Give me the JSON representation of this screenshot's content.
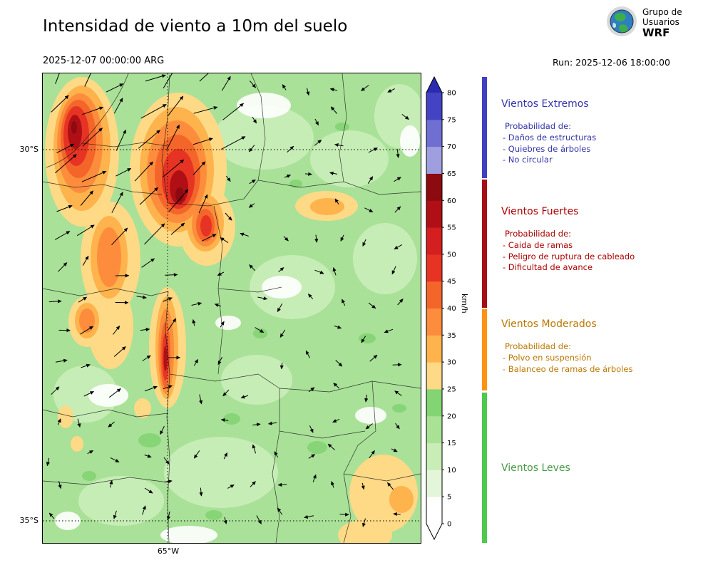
{
  "header": {
    "title": "Intensidad de viento a 10m del suelo",
    "datetime": "2025-12-07 00:00:00 ARG",
    "run_label": "Run: 2025-12-06 18:00:00",
    "logo": {
      "line1": "Grupo de",
      "line2": "Usuarios",
      "line3": "WRF"
    }
  },
  "map": {
    "lat_ticks": [
      "30°S",
      "35°S"
    ],
    "lon_ticks": [
      "65°W"
    ]
  },
  "colorbar": {
    "unit": "km/h",
    "ticks": [
      0,
      5,
      10,
      15,
      20,
      25,
      30,
      35,
      40,
      45,
      50,
      55,
      60,
      65,
      70,
      75,
      80
    ],
    "segments": [
      {
        "from": 0,
        "to": 5,
        "color": "#ffffff"
      },
      {
        "from": 5,
        "to": 10,
        "color": "#e4f6da"
      },
      {
        "from": 10,
        "to": 15,
        "color": "#c9edb6"
      },
      {
        "from": 15,
        "to": 20,
        "color": "#a9e295"
      },
      {
        "from": 20,
        "to": 25,
        "color": "#83d573"
      },
      {
        "from": 25,
        "to": 30,
        "color": "#fed986"
      },
      {
        "from": 30,
        "to": 35,
        "color": "#feb34c"
      },
      {
        "from": 35,
        "to": 40,
        "color": "#fd8d3c"
      },
      {
        "from": 40,
        "to": 45,
        "color": "#f4652a"
      },
      {
        "from": 45,
        "to": 50,
        "color": "#e63323"
      },
      {
        "from": 50,
        "to": 55,
        "color": "#d41e1f"
      },
      {
        "from": 55,
        "to": 60,
        "color": "#b01015"
      },
      {
        "from": 60,
        "to": 65,
        "color": "#8c0a10"
      },
      {
        "from": 65,
        "to": 70,
        "color": "#9f9fe0"
      },
      {
        "from": 70,
        "to": 75,
        "color": "#6f6fd2"
      },
      {
        "from": 75,
        "to": 80,
        "color": "#4343c3"
      }
    ],
    "over_color": "#2a2ab2",
    "under_color": "#ffffff"
  },
  "legend": {
    "sections": [
      {
        "title": "Vientos Extremos",
        "color": "#3333aa",
        "bar_color": "#4040c0",
        "items_header": "Probabilidad de:",
        "items": [
          "- Daños de estructuras",
          "- Quiebres de árboles",
          "- No circular"
        ]
      },
      {
        "title": "Vientos Fuertes",
        "color": "#aa0000",
        "bar_color": "#a50f15",
        "items_header": "Probabilidad de:",
        "items": [
          "- Caida de ramas",
          "- Peligro de ruptura de cableado",
          "- Dificultad de avance"
        ]
      },
      {
        "title": "Vientos Moderados",
        "color": "#bb7700",
        "bar_color": "#ff9214",
        "items_header": "Probabilidad de:",
        "items": [
          "- Polvo en suspensión",
          "- Balanceo de ramas de árboles"
        ]
      },
      {
        "title": "Vientos Leves",
        "color": "#449944",
        "bar_color": "#4ec84e",
        "items_header": "",
        "items": []
      }
    ]
  }
}
